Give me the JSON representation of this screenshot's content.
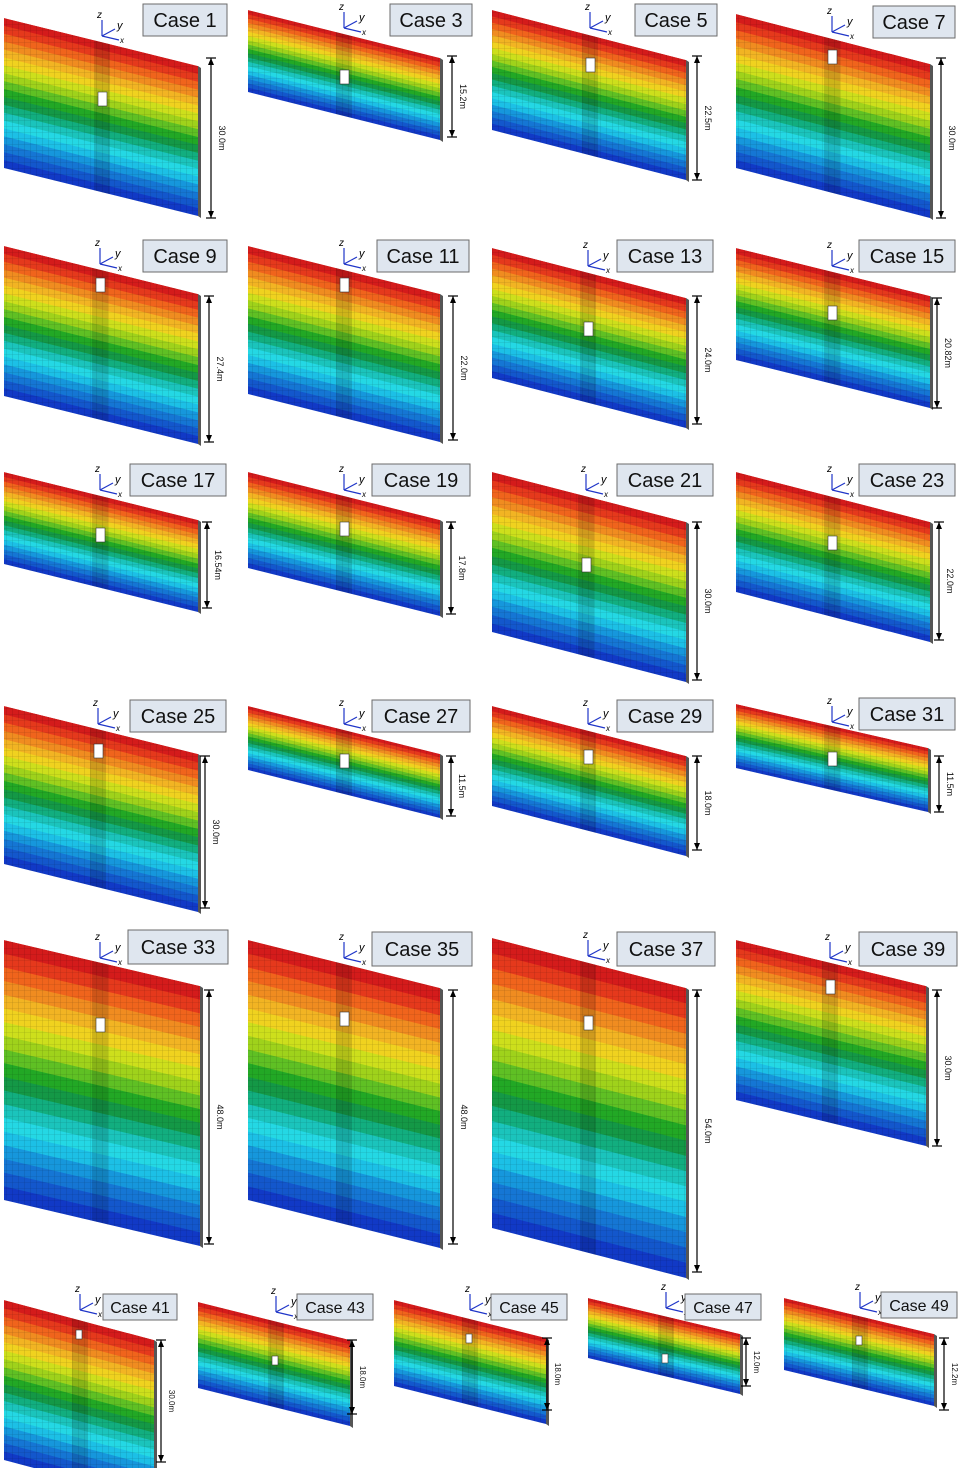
{
  "colors": {
    "bands": [
      "#d41b1b",
      "#e5391c",
      "#f0641c",
      "#f08c20",
      "#f2b423",
      "#f0d21f",
      "#cddf1c",
      "#9fd21b",
      "#5fc024",
      "#22a825",
      "#149846",
      "#12ae7f",
      "#1bc4bc",
      "#24d8e4",
      "#1cc0e6",
      "#1697dc",
      "#1576d4",
      "#1357cc",
      "#1139c6"
    ],
    "label_fill": "#dfe6ef",
    "label_border": "#6b6b6b",
    "axis": "#1f35c8",
    "dim_line": "#000000",
    "opening": "#ffffff"
  },
  "axis_labels": {
    "z": "z",
    "y": "y",
    "x": "x"
  },
  "cases": [
    {
      "label": "Case 1",
      "dimension": "30.0m"
    },
    {
      "label": "Case 3",
      "dimension": "15.2m"
    },
    {
      "label": "Case 5",
      "dimension": "22.5m"
    },
    {
      "label": "Case 7",
      "dimension": "30.0m"
    },
    {
      "label": "Case 9",
      "dimension": "27.4m"
    },
    {
      "label": "Case 11",
      "dimension": "22.0m"
    },
    {
      "label": "Case 13",
      "dimension": "24.0m"
    },
    {
      "label": "Case 15",
      "dimension": "20.82m"
    },
    {
      "label": "Case 17",
      "dimension": "16.54m"
    },
    {
      "label": "Case 19",
      "dimension": "17.8m"
    },
    {
      "label": "Case 21",
      "dimension": "30.0m"
    },
    {
      "label": "Case 23",
      "dimension": "22.0m"
    },
    {
      "label": "Case 25",
      "dimension": "30.0m"
    },
    {
      "label": "Case 27",
      "dimension": "11.5m"
    },
    {
      "label": "Case 29",
      "dimension": "18.0m"
    },
    {
      "label": "Case 31",
      "dimension": "11.5m"
    },
    {
      "label": "Case 33",
      "dimension": "48.0m"
    },
    {
      "label": "Case 35",
      "dimension": "48.0m"
    },
    {
      "label": "Case 37",
      "dimension": "54.0m"
    },
    {
      "label": "Case 39",
      "dimension": "30.0m"
    },
    {
      "label": "Case 41",
      "dimension": "30.0m"
    },
    {
      "label": "Case 43",
      "dimension": "18.0m"
    },
    {
      "label": "Case 45",
      "dimension": "18.0m"
    },
    {
      "label": "Case 47",
      "dimension": "12.0m"
    },
    {
      "label": "Case 49",
      "dimension": "12.2m"
    }
  ]
}
